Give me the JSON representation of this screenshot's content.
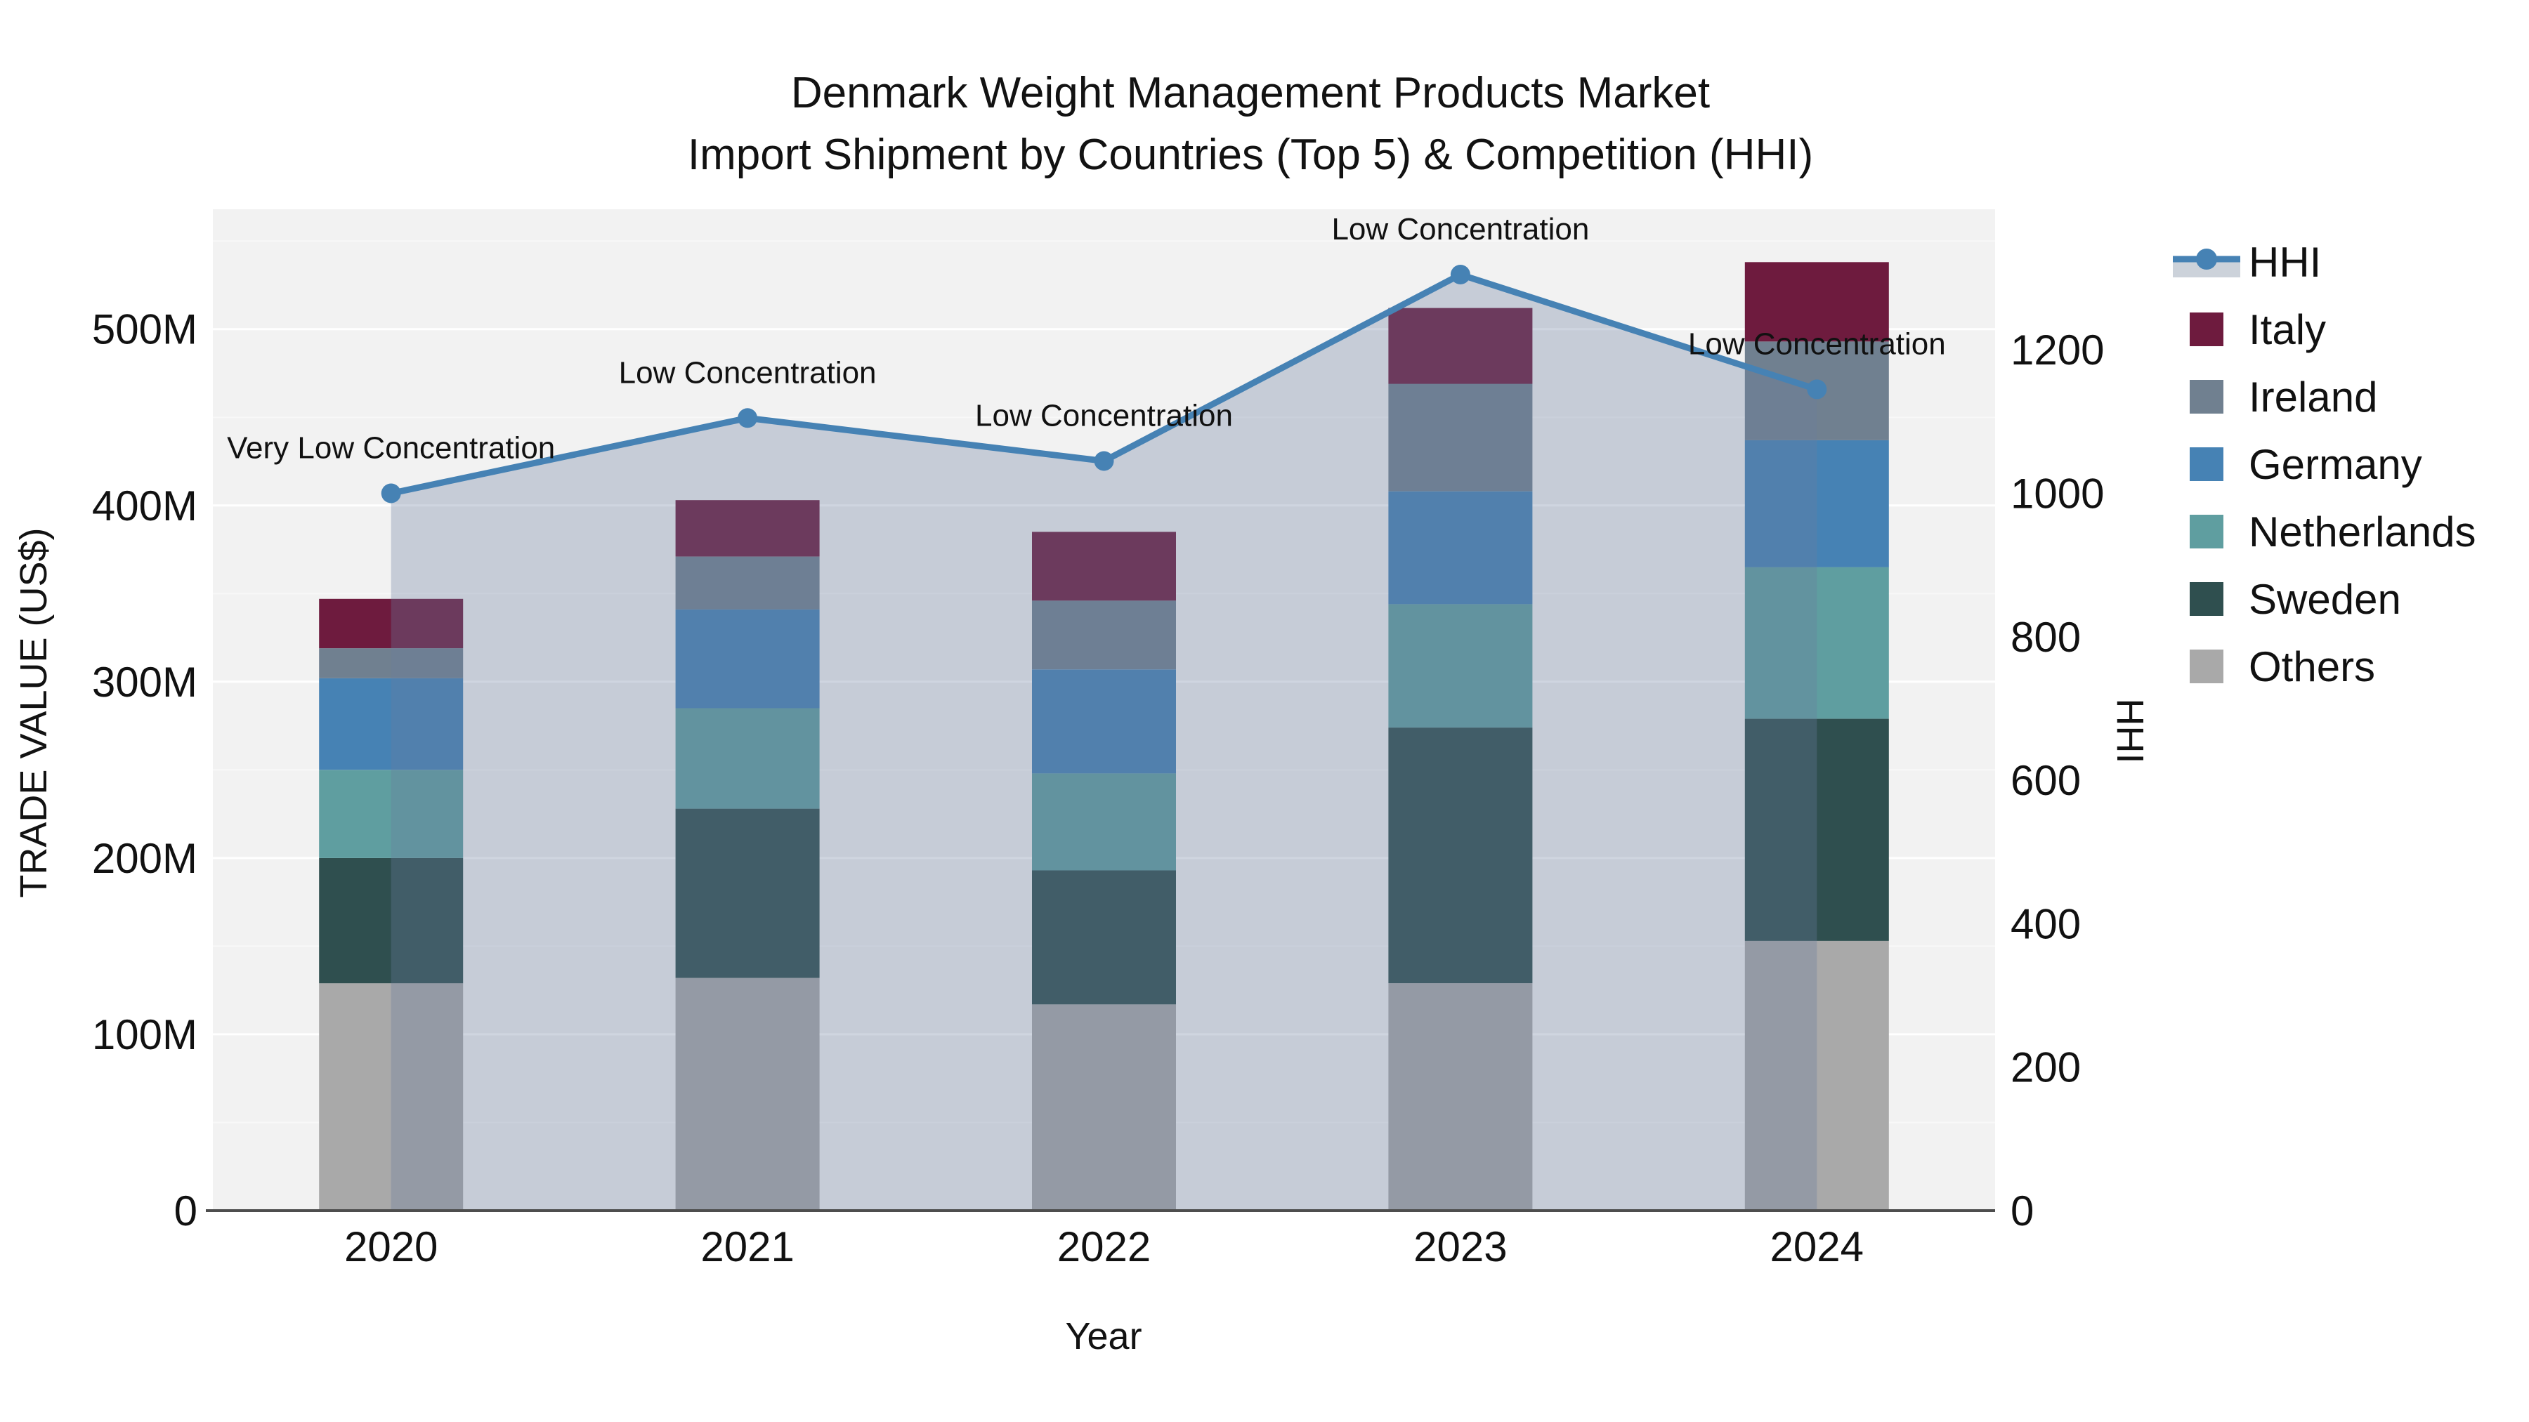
{
  "title": {
    "line1": "Denmark Weight Management Products Market",
    "line2": "Import Shipment by Countries (Top 5) & Competition (HHI)"
  },
  "axes": {
    "left": {
      "title": "TRADE VALUE (US$)",
      "ticks": [
        {
          "label": "0",
          "v": 0
        },
        {
          "label": "100M",
          "v": 100
        },
        {
          "label": "200M",
          "v": 200
        },
        {
          "label": "300M",
          "v": 300
        },
        {
          "label": "400M",
          "v": 400
        },
        {
          "label": "500M",
          "v": 500
        }
      ]
    },
    "right": {
      "title": "HHI",
      "ticks": [
        {
          "label": "0",
          "v": 0
        },
        {
          "label": "200",
          "v": 200
        },
        {
          "label": "400",
          "v": 400
        },
        {
          "label": "600",
          "v": 600
        },
        {
          "label": "800",
          "v": 800
        },
        {
          "label": "1000",
          "v": 1000
        },
        {
          "label": "1200",
          "v": 1200
        }
      ]
    },
    "bottom": {
      "title": "Year"
    }
  },
  "legend": {
    "items": [
      {
        "label": "HHI",
        "type": "line"
      },
      {
        "label": "Italy",
        "type": "swatch",
        "color": "#6e1b3e"
      },
      {
        "label": "Ireland",
        "type": "swatch",
        "color": "#708090"
      },
      {
        "label": "Germany",
        "type": "swatch",
        "color": "#4682b4"
      },
      {
        "label": "Netherlands",
        "type": "swatch",
        "color": "#5f9ea0"
      },
      {
        "label": "Sweden",
        "type": "swatch",
        "color": "#2f4f4f"
      },
      {
        "label": "Others",
        "type": "swatch",
        "color": "#a9a9a9"
      }
    ]
  },
  "style": {
    "plot_background": "#f2f2f2",
    "grid_major": "#ffffff",
    "grid_minor": "#f8f8f8",
    "axis_line": "#4d4d4d",
    "accent": "#4682b4",
    "legend_band": "#ccd2da",
    "text": "#111111"
  },
  "chart_data": {
    "type": "bar",
    "stacked": true,
    "title": "Denmark Weight Management Products Market — Import Shipment by Countries (Top 5) & Competition (HHI)",
    "xlabel": "Year",
    "ylabel": "TRADE VALUE (US$)",
    "ylabel_right": "HHI",
    "units": "millions US$",
    "categories": [
      "2020",
      "2021",
      "2022",
      "2023",
      "2024"
    ],
    "series": [
      {
        "name": "Others",
        "color": "#a9a9a9",
        "values": [
          129,
          132,
          117,
          129,
          153
        ]
      },
      {
        "name": "Sweden",
        "color": "#2f4f4f",
        "values": [
          71,
          96,
          76,
          145,
          126
        ]
      },
      {
        "name": "Netherlands",
        "color": "#5f9ea0",
        "values": [
          50,
          57,
          55,
          70,
          86
        ]
      },
      {
        "name": "Germany",
        "color": "#4682b4",
        "values": [
          52,
          56,
          59,
          64,
          72
        ]
      },
      {
        "name": "Ireland",
        "color": "#708090",
        "values": [
          17,
          30,
          39,
          61,
          56
        ]
      },
      {
        "name": "Italy",
        "color": "#6e1b3e",
        "values": [
          28,
          32,
          39,
          43,
          45
        ]
      }
    ],
    "totals": [
      347,
      403,
      385,
      512,
      538
    ],
    "line_series": {
      "name": "HHI",
      "axis": "right",
      "color": "#4682b4",
      "area_color": "#6a7d9e",
      "area_opacity": 0.32,
      "values": [
        1000,
        1105,
        1045,
        1305,
        1145
      ]
    },
    "annotations": [
      "Very Low Concentration",
      "Low Concentration",
      "Low Concentration",
      "Low Concentration",
      "Low Concentration"
    ],
    "ylim": [
      0,
      568
    ],
    "ylim_right": [
      0,
      1396
    ],
    "grid": true,
    "legend_position": "right"
  }
}
